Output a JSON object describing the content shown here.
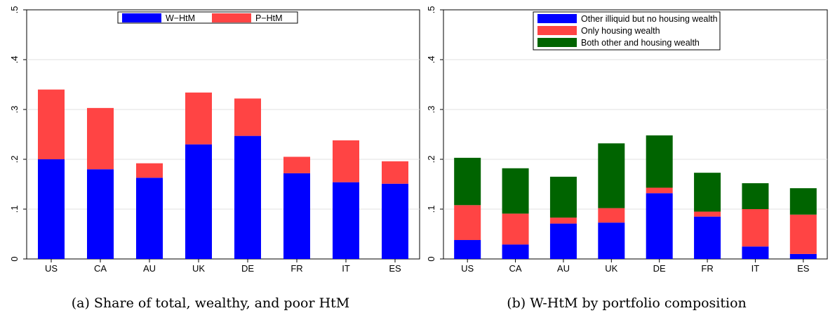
{
  "chart_data": [
    {
      "type": "bar",
      "stacked": true,
      "caption": "(a) Share of total, wealthy, and poor HtM",
      "categories": [
        "US",
        "CA",
        "AU",
        "UK",
        "DE",
        "FR",
        "IT",
        "ES"
      ],
      "ylim": [
        0,
        0.5
      ],
      "yticks": [
        0,
        0.1,
        0.2,
        0.3,
        0.4,
        0.5
      ],
      "ytick_labels": [
        "0",
        ".1",
        ".2",
        ".3",
        ".4",
        ".5"
      ],
      "grid": true,
      "legend_position": "top-center",
      "series": [
        {
          "name": "W−HtM",
          "color": "#0000ff",
          "values": [
            0.2,
            0.18,
            0.163,
            0.23,
            0.247,
            0.172,
            0.154,
            0.151
          ]
        },
        {
          "name": "P−HtM",
          "color": "#ff4444",
          "values": [
            0.14,
            0.123,
            0.029,
            0.104,
            0.075,
            0.033,
            0.084,
            0.045
          ]
        }
      ]
    },
    {
      "type": "bar",
      "stacked": true,
      "caption": "(b) W-HtM by portfolio composition",
      "categories": [
        "US",
        "CA",
        "AU",
        "UK",
        "DE",
        "FR",
        "IT",
        "ES"
      ],
      "ylim": [
        0,
        0.5
      ],
      "yticks": [
        0,
        0.1,
        0.2,
        0.3,
        0.4,
        0.5
      ],
      "ytick_labels": [
        "0",
        ".1",
        ".2",
        ".3",
        ".4",
        ".5"
      ],
      "grid": true,
      "legend_position": "top-center",
      "series": [
        {
          "name": "Other illiquid but no housing wealth",
          "color": "#0000ff",
          "values": [
            0.038,
            0.029,
            0.071,
            0.073,
            0.132,
            0.085,
            0.025,
            0.01
          ]
        },
        {
          "name": "Only housing wealth",
          "color": "#ff4444",
          "values": [
            0.07,
            0.062,
            0.012,
            0.029,
            0.011,
            0.01,
            0.075,
            0.079
          ]
        },
        {
          "name": "Both other and housing wealth",
          "color": "#006400",
          "values": [
            0.095,
            0.091,
            0.082,
            0.13,
            0.105,
            0.078,
            0.052,
            0.053
          ]
        }
      ]
    }
  ]
}
